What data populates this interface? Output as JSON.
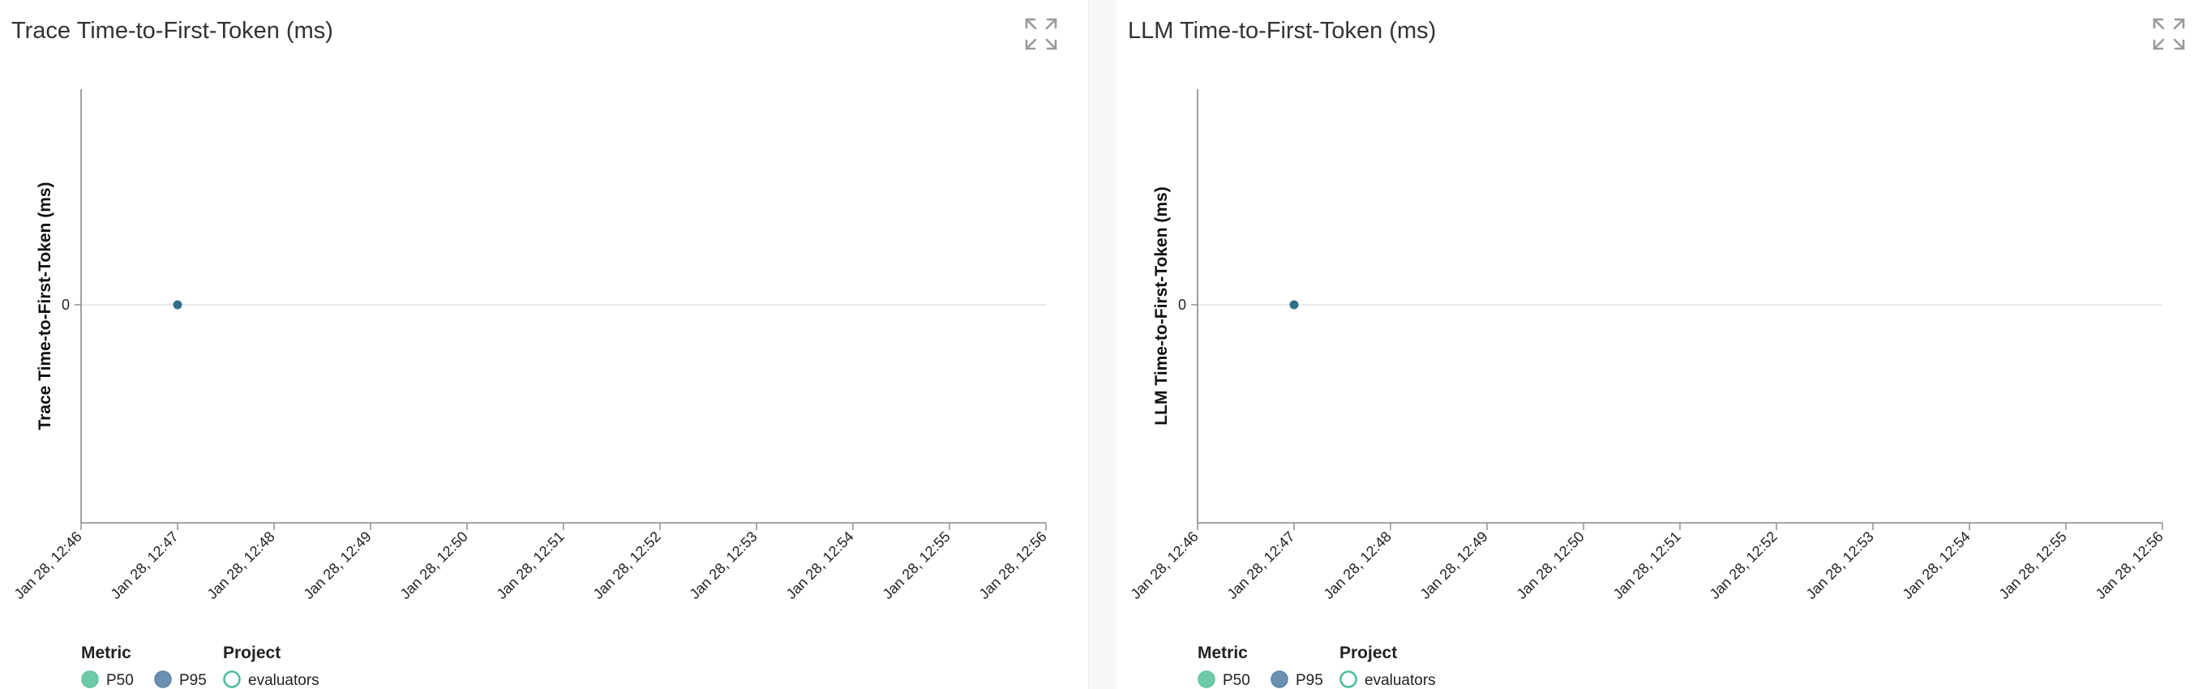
{
  "chart_data": [
    {
      "type": "scatter",
      "title": "Trace Time-to-First-Token (ms)",
      "ylabel": "Trace Time-to-First-Token (ms)",
      "xlabel": "",
      "x_ticks": [
        "Jan 28, 12:46",
        "Jan 28, 12:47",
        "Jan 28, 12:48",
        "Jan 28, 12:49",
        "Jan 28, 12:50",
        "Jan 28, 12:51",
        "Jan 28, 12:52",
        "Jan 28, 12:53",
        "Jan 28, 12:54",
        "Jan 28, 12:55",
        "Jan 28, 12:56"
      ],
      "y_ticks": [
        0
      ],
      "points": [
        {
          "x": "Jan 28, 12:47",
          "y": 0,
          "metric": "P95",
          "project": "evaluators"
        }
      ],
      "grid": true,
      "legend": {
        "placement": "bottom-left",
        "metric_title": "Metric",
        "metric_items": [
          {
            "label": "P50",
            "color": "#5ec49a"
          },
          {
            "label": "P95",
            "color": "#5b84a8"
          }
        ],
        "project_title": "Project",
        "project_items": [
          {
            "label": "evaluators",
            "color": "#4fbf94"
          }
        ]
      }
    },
    {
      "type": "scatter",
      "title": "LLM Time-to-First-Token (ms)",
      "ylabel": "LLM Time-to-First-Token (ms)",
      "xlabel": "",
      "x_ticks": [
        "Jan 28, 12:46",
        "Jan 28, 12:47",
        "Jan 28, 12:48",
        "Jan 28, 12:49",
        "Jan 28, 12:50",
        "Jan 28, 12:51",
        "Jan 28, 12:52",
        "Jan 28, 12:53",
        "Jan 28, 12:54",
        "Jan 28, 12:55",
        "Jan 28, 12:56"
      ],
      "y_ticks": [
        0
      ],
      "points": [
        {
          "x": "Jan 28, 12:47",
          "y": 0,
          "metric": "P95",
          "project": "evaluators"
        }
      ],
      "grid": true,
      "legend": {
        "placement": "bottom-left",
        "metric_title": "Metric",
        "metric_items": [
          {
            "label": "P50",
            "color": "#5ec49a"
          },
          {
            "label": "P95",
            "color": "#5b84a8"
          }
        ],
        "project_title": "Project",
        "project_items": [
          {
            "label": "evaluators",
            "color": "#4fbf94"
          }
        ]
      }
    }
  ],
  "icons": {
    "expand": "expand-icon"
  },
  "colors": {
    "point": "#2f6f87",
    "axis": "#888888",
    "grid": "#dddddd"
  }
}
